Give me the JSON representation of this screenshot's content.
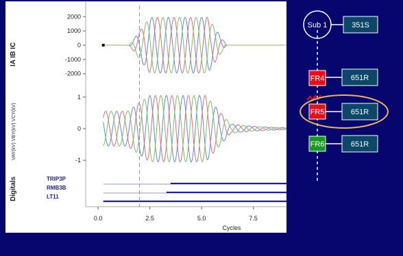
{
  "chart_data": {
    "type": "line",
    "xlabel": "Cycles",
    "x_ticks": [
      "0.0",
      "2.5",
      "5.0",
      "7.5"
    ],
    "xlim": [
      -0.6,
      9.1
    ],
    "cursor_x": 2.0,
    "currents": {
      "ylabel": "IA IB IC",
      "y_ticks": [
        "2000",
        "1000",
        "0",
        "-1000",
        "-2000"
      ],
      "ylim": [
        -2400,
        2400
      ],
      "colors": [
        "#5a8adf",
        "#df6a7a",
        "#7fbf5f"
      ],
      "envelope": {
        "start": 1.5,
        "peak_start": 2.5,
        "peak_end": 5.3,
        "end": 6.2,
        "amplitude": 1950
      },
      "frequency": 1.25
    },
    "voltages": {
      "ylabel": "VAY(kV) VBY(kV) VCY(kV)",
      "y_ticks": [
        "1",
        "0",
        "-1"
      ],
      "ylim": [
        -1.3,
        1.3
      ],
      "colors": [
        "#5a8adf",
        "#df6a7a",
        "#7fbf5f"
      ]
    },
    "digitals": {
      "ylabel": "Digitals",
      "signals": [
        {
          "name": "TRIP3P",
          "asserted_from": 3.5
        },
        {
          "name": "RMB3B",
          "asserted_from": 3.3
        },
        {
          "name": "LT11",
          "asserted_from": 0.25
        }
      ]
    }
  },
  "diagram": {
    "sub": {
      "label": "Sub 1",
      "relay": "351S"
    },
    "feeders": [
      {
        "label": "FR4",
        "relay": "651R",
        "color": "#e5101a"
      },
      {
        "label": "FR5",
        "relay": "651R",
        "color": "#e5101a",
        "highlighted": true
      },
      {
        "label": "FR6",
        "relay": "651R",
        "color": "#129a25"
      }
    ],
    "colors": {
      "relay_box": "#0c4668",
      "highlight": "#f2b45a",
      "fault": "#e5101a"
    }
  }
}
